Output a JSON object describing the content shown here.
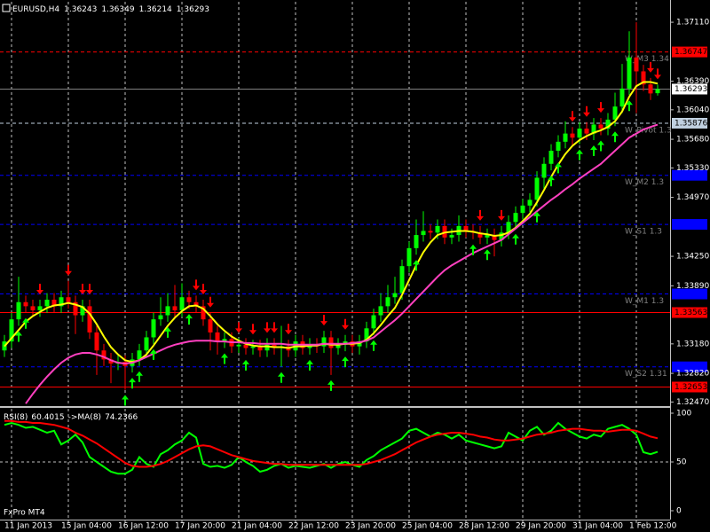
{
  "chart_data": [
    {
      "type": "candlestick",
      "title": "EURUSD,H4",
      "candles": [
        [
          1.331,
          1.3329,
          1.3302,
          1.3321
        ],
        [
          1.3321,
          1.3356,
          1.3313,
          1.3348
        ],
        [
          1.3348,
          1.34,
          1.334,
          1.3369
        ],
        [
          1.3369,
          1.3377,
          1.3356,
          1.3364
        ],
        [
          1.3364,
          1.3372,
          1.3351,
          1.3359
        ],
        [
          1.3359,
          1.3372,
          1.3351,
          1.3364
        ],
        [
          1.3364,
          1.338,
          1.3356,
          1.3372
        ],
        [
          1.3372,
          1.338,
          1.3356,
          1.3364
        ],
        [
          1.3364,
          1.3383,
          1.3356,
          1.3375
        ],
        [
          1.3375,
          1.3395,
          1.3361,
          1.3369
        ],
        [
          1.3369,
          1.3377,
          1.333,
          1.3353
        ],
        [
          1.3353,
          1.3372,
          1.3345,
          1.3364
        ],
        [
          1.3364,
          1.3372,
          1.3324,
          1.3332
        ],
        [
          1.3332,
          1.334,
          1.328,
          1.331
        ],
        [
          1.331,
          1.3318,
          1.3291,
          1.3299
        ],
        [
          1.3299,
          1.3307,
          1.327,
          1.3294
        ],
        [
          1.3294,
          1.3304,
          1.3286,
          1.3296
        ],
        [
          1.3296,
          1.3304,
          1.3262,
          1.3291
        ],
        [
          1.3291,
          1.3307,
          1.3283,
          1.3299
        ],
        [
          1.3299,
          1.3318,
          1.3291,
          1.331
        ],
        [
          1.331,
          1.3334,
          1.3302,
          1.3326
        ],
        [
          1.3326,
          1.3356,
          1.3318,
          1.3348
        ],
        [
          1.3348,
          1.3375,
          1.334,
          1.3353
        ],
        [
          1.3353,
          1.338,
          1.3345,
          1.3364
        ],
        [
          1.3364,
          1.339,
          1.3351,
          1.3359
        ],
        [
          1.3359,
          1.3392,
          1.3351,
          1.3375
        ],
        [
          1.3375,
          1.3383,
          1.3361,
          1.3369
        ],
        [
          1.3369,
          1.3377,
          1.3356,
          1.3364
        ],
        [
          1.3364,
          1.3372,
          1.334,
          1.3348
        ],
        [
          1.3348,
          1.3356,
          1.331,
          1.3332
        ],
        [
          1.3332,
          1.334,
          1.3305,
          1.3321
        ],
        [
          1.3321,
          1.3332,
          1.3313,
          1.3324
        ],
        [
          1.3324,
          1.3332,
          1.3307,
          1.3315
        ],
        [
          1.3315,
          1.3325,
          1.3307,
          1.3317
        ],
        [
          1.3317,
          1.3325,
          1.3305,
          1.3313
        ],
        [
          1.3313,
          1.3323,
          1.3305,
          1.3315
        ],
        [
          1.3315,
          1.3323,
          1.3302,
          1.331
        ],
        [
          1.331,
          1.3325,
          1.3302,
          1.3317
        ],
        [
          1.3317,
          1.3325,
          1.3305,
          1.3313
        ],
        [
          1.3313,
          1.334,
          1.329,
          1.3315
        ],
        [
          1.3315,
          1.3323,
          1.3302,
          1.331
        ],
        [
          1.331,
          1.3329,
          1.3302,
          1.3321
        ],
        [
          1.3321,
          1.3329,
          1.3305,
          1.3313
        ],
        [
          1.3313,
          1.3325,
          1.3305,
          1.3317
        ],
        [
          1.3317,
          1.3325,
          1.3307,
          1.3315
        ],
        [
          1.3315,
          1.3334,
          1.3307,
          1.3326
        ],
        [
          1.3326,
          1.3334,
          1.328,
          1.3313
        ],
        [
          1.3313,
          1.3325,
          1.3305,
          1.3317
        ],
        [
          1.3317,
          1.3329,
          1.3309,
          1.3321
        ],
        [
          1.3321,
          1.3329,
          1.3307,
          1.3315
        ],
        [
          1.3315,
          1.3329,
          1.3305,
          1.3321
        ],
        [
          1.3321,
          1.3345,
          1.3313,
          1.3337
        ],
        [
          1.3337,
          1.3361,
          1.3329,
          1.3353
        ],
        [
          1.3353,
          1.338,
          1.3345,
          1.3364
        ],
        [
          1.3364,
          1.339,
          1.3356,
          1.3375
        ],
        [
          1.3375,
          1.34,
          1.3367,
          1.338
        ],
        [
          1.338,
          1.3421,
          1.3372,
          1.3413
        ],
        [
          1.3413,
          1.3443,
          1.3405,
          1.3435
        ],
        [
          1.3435,
          1.347,
          1.3427,
          1.3451
        ],
        [
          1.3451,
          1.348,
          1.3443,
          1.3456
        ],
        [
          1.3456,
          1.3464,
          1.3446,
          1.3454
        ],
        [
          1.3454,
          1.347,
          1.3446,
          1.3462
        ],
        [
          1.3462,
          1.347,
          1.344,
          1.3448
        ],
        [
          1.3448,
          1.3459,
          1.344,
          1.3451
        ],
        [
          1.3451,
          1.3475,
          1.3443,
          1.3462
        ],
        [
          1.3462,
          1.347,
          1.3448,
          1.3456
        ],
        [
          1.3456,
          1.3464,
          1.3446,
          1.3454
        ],
        [
          1.3454,
          1.3462,
          1.344,
          1.3448
        ],
        [
          1.3448,
          1.3459,
          1.344,
          1.3451
        ],
        [
          1.3451,
          1.3459,
          1.3425,
          1.3445
        ],
        [
          1.3445,
          1.3462,
          1.3437,
          1.3454
        ],
        [
          1.3454,
          1.3475,
          1.3446,
          1.3467
        ],
        [
          1.3467,
          1.3486,
          1.3459,
          1.3478
        ],
        [
          1.3478,
          1.3495,
          1.347,
          1.3487
        ],
        [
          1.3487,
          1.3502,
          1.3479,
          1.3494
        ],
        [
          1.3494,
          1.3529,
          1.3486,
          1.3521
        ],
        [
          1.3521,
          1.3546,
          1.3505,
          1.3538
        ],
        [
          1.3538,
          1.3562,
          1.353,
          1.3554
        ],
        [
          1.3554,
          1.3573,
          1.3546,
          1.3565
        ],
        [
          1.3565,
          1.359,
          1.3557,
          1.3575
        ],
        [
          1.3575,
          1.3583,
          1.356,
          1.357
        ],
        [
          1.357,
          1.3589,
          1.3562,
          1.3581
        ],
        [
          1.3581,
          1.3589,
          1.3567,
          1.3575
        ],
        [
          1.3575,
          1.3594,
          1.3567,
          1.3586
        ],
        [
          1.3586,
          1.3594,
          1.3573,
          1.3581
        ],
        [
          1.3581,
          1.36,
          1.3573,
          1.3592
        ],
        [
          1.3592,
          1.3625,
          1.3584,
          1.3608
        ],
        [
          1.3608,
          1.366,
          1.36,
          1.363
        ],
        [
          1.363,
          1.37,
          1.3622,
          1.3668
        ],
        [
          1.3668,
          1.3711,
          1.36,
          1.3651
        ],
        [
          1.3651,
          1.3659,
          1.3627,
          1.3635
        ],
        [
          1.3635,
          1.3643,
          1.3616,
          1.3624
        ],
        [
          1.36243,
          1.36349,
          1.36214,
          1.36293
        ]
      ],
      "up_color": "#00ff00",
      "down_color": "#ff0000",
      "overlays": [
        {
          "color": "#ffff00",
          "values": [
            1.3315,
            1.3325,
            1.3335,
            1.3345,
            1.3352,
            1.3357,
            1.3362,
            1.3365,
            1.3366,
            1.3368,
            1.3366,
            1.3363,
            1.3355,
            1.3342,
            1.3327,
            1.3314,
            1.3305,
            1.3298,
            1.3296,
            1.3298,
            1.3305,
            1.3316,
            1.3328,
            1.334,
            1.335,
            1.3358,
            1.3364,
            1.3365,
            1.3361,
            1.3352,
            1.3342,
            1.3334,
            1.3327,
            1.3322,
            1.3318,
            1.3316,
            1.3315,
            1.3315,
            1.3314,
            1.3314,
            1.3313,
            1.3315,
            1.3315,
            1.3316,
            1.3316,
            1.3318,
            1.3317,
            1.3317,
            1.3318,
            1.3318,
            1.3319,
            1.3323,
            1.3331,
            1.3341,
            1.3352,
            1.3362,
            1.3378,
            1.3396,
            1.3414,
            1.343,
            1.3442,
            1.3451,
            1.3454,
            1.3455,
            1.3456,
            1.3456,
            1.3455,
            1.3453,
            1.3452,
            1.345,
            1.3451,
            1.3454,
            1.346,
            1.3468,
            1.3477,
            1.3491,
            1.3506,
            1.3522,
            1.3537,
            1.355,
            1.356,
            1.3567,
            1.3572,
            1.3576,
            1.3579,
            1.3583,
            1.359,
            1.3602,
            1.362,
            1.3633,
            1.3638,
            1.3638,
            1.3636
          ]
        },
        {
          "color": "#ff40c0",
          "values": [
            null,
            null,
            null,
            1.3245,
            1.3257,
            1.3268,
            1.3278,
            1.3287,
            1.3295,
            1.3301,
            1.3305,
            1.3307,
            1.3307,
            1.3305,
            1.3302,
            1.3298,
            1.3295,
            1.3294,
            1.3295,
            1.3298,
            1.3302,
            1.3306,
            1.331,
            1.3314,
            1.3317,
            1.3319,
            1.3321,
            1.3322,
            1.3322,
            1.3322,
            1.3321,
            1.3321,
            1.332,
            1.332,
            1.3319,
            1.3319,
            1.3318,
            1.3318,
            1.3318,
            1.3318,
            1.3317,
            1.3317,
            1.3317,
            1.3317,
            1.3317,
            1.3318,
            1.3318,
            1.3318,
            1.3318,
            1.3319,
            1.332,
            1.3322,
            1.3326,
            1.3333,
            1.334,
            1.3347,
            1.3355,
            1.3364,
            1.3373,
            1.3382,
            1.3391,
            1.34,
            1.3408,
            1.3414,
            1.3419,
            1.3424,
            1.3429,
            1.3433,
            1.3437,
            1.3441,
            1.3445,
            1.3452,
            1.3459,
            1.3466,
            1.3473,
            1.348,
            1.3487,
            1.3494,
            1.35,
            1.3507,
            1.3513,
            1.352,
            1.3526,
            1.3532,
            1.3538,
            1.3546,
            1.3554,
            1.3562,
            1.357,
            1.3575,
            1.358,
            1.3583,
            1.3586
          ]
        }
      ],
      "levels": [
        {
          "name": "W_M3 1.34",
          "value": 1.36747,
          "label": "1.36747",
          "color": "#ff0000",
          "style": "dashed"
        },
        {
          "name": "W_Pivot 1.3",
          "value": 1.35876,
          "label": "1.35876",
          "color": "#c0d0e0",
          "style": "dashed"
        },
        {
          "name": "W_M2 1.3",
          "value": 1.3524,
          "color": "#0000ff",
          "style": "dashed"
        },
        {
          "name": "W_S1 1.3",
          "value": 1.3464,
          "color": "#0000ff",
          "style": "dashed"
        },
        {
          "name": "W_M1 1.3",
          "value": 1.3379,
          "color": "#0000ff",
          "style": "dashed"
        },
        {
          "value": 1.33563,
          "label": "1.33563",
          "color": "#ff0000",
          "style": "solid"
        },
        {
          "name": "W_S2 1.31",
          "value": 1.329,
          "color": "#0000ff",
          "style": "dashed"
        },
        {
          "value": 1.32653,
          "label": "1.32653",
          "color": "#ff0000",
          "style": "solid"
        }
      ],
      "signals": {
        "sell": [
          5,
          9,
          11,
          12,
          27,
          28,
          29,
          33,
          35,
          37,
          38,
          40,
          45,
          48,
          67,
          70,
          80,
          82,
          84,
          91,
          92
        ],
        "buy": [
          2,
          3,
          17,
          18,
          19,
          21,
          23,
          26,
          31,
          34,
          39,
          43,
          46,
          48,
          52,
          58,
          66,
          68,
          72,
          75,
          77,
          78,
          81,
          83,
          84,
          86,
          88
        ]
      },
      "ylim": [
        1.3242,
        1.3736
      ],
      "yticks": [
        {
          "value": 1.3711,
          "label": "1.37110"
        },
        {
          "value": 1.3639,
          "label": "1.36390"
        },
        {
          "value": 1.3604,
          "label": "1.36040"
        },
        {
          "value": 1.3568,
          "label": "1.35680"
        },
        {
          "value": 1.3533,
          "label": "1.35330"
        },
        {
          "value": 1.3497,
          "label": "1.34970"
        },
        {
          "value": 1.3425,
          "label": "1.34250"
        },
        {
          "value": 1.3389,
          "label": "1.33890"
        },
        {
          "value": 1.3318,
          "label": "1.33180"
        },
        {
          "value": 1.3282,
          "label": "1.32820"
        },
        {
          "value": 1.3247,
          "label": "1.32470"
        }
      ],
      "xlim": [
        -0.625,
        93.75
      ],
      "xticks": [
        {
          "value": 1,
          "label": "11 Jan 2013"
        },
        {
          "value": 9,
          "label": "15 Jan 04:00"
        },
        {
          "value": 17,
          "label": "16 Jan 12:00"
        },
        {
          "value": 25,
          "label": "17 Jan 20:00"
        },
        {
          "value": 33,
          "label": "21 Jan 04:00"
        },
        {
          "value": 41,
          "label": "22 Jan 12:00"
        },
        {
          "value": 49,
          "label": "23 Jan 20:00"
        },
        {
          "value": 57,
          "label": "25 Jan 04:00"
        },
        {
          "value": 65,
          "label": "28 Jan 12:00"
        },
        {
          "value": 73,
          "label": "29 Jan 20:00"
        },
        {
          "value": 81,
          "label": "31 Jan 04:00"
        },
        {
          "value": 89,
          "label": "1 Feb 12:00"
        }
      ]
    },
    {
      "type": "line",
      "title": "RSI(8)",
      "ma_title": "->MA(8)",
      "series": [
        {
          "color": "#00ff00",
          "values": [
            88,
            90,
            88,
            85,
            86,
            83,
            80,
            82,
            68,
            72,
            78,
            70,
            55,
            50,
            45,
            40,
            38,
            38,
            42,
            55,
            48,
            45,
            58,
            62,
            68,
            72,
            80,
            75,
            48,
            45,
            46,
            44,
            47,
            55,
            50,
            46,
            40,
            42,
            46,
            48,
            44,
            46,
            45,
            44,
            46,
            48,
            44,
            48,
            50,
            47,
            45,
            52,
            56,
            62,
            66,
            70,
            74,
            82,
            84,
            80,
            76,
            80,
            78,
            74,
            78,
            72,
            70,
            68,
            66,
            64,
            66,
            80,
            76,
            72,
            82,
            86,
            78,
            82,
            90,
            84,
            80,
            76,
            74,
            78,
            76,
            84,
            86,
            88,
            84,
            78,
            60,
            58,
            60.4015
          ]
        },
        {
          "color": "#ff0000",
          "values": [
            92,
            92,
            91,
            91,
            90,
            90,
            89,
            88,
            86,
            84,
            80,
            77,
            73,
            69,
            64,
            59,
            54,
            49,
            46,
            45,
            45,
            46,
            48,
            51,
            55,
            59,
            63,
            66,
            67,
            66,
            63,
            60,
            57,
            55,
            53,
            51,
            50,
            49,
            48,
            48,
            47,
            47,
            47,
            47,
            47,
            47,
            47,
            47,
            47,
            47,
            47,
            48,
            50,
            52,
            55,
            58,
            62,
            66,
            70,
            73,
            76,
            78,
            79,
            80,
            80,
            79,
            78,
            76,
            75,
            73,
            72,
            72,
            73,
            74,
            76,
            78,
            79,
            80,
            82,
            83,
            84,
            84,
            83,
            82,
            82,
            81,
            82,
            83,
            83,
            82,
            79,
            76,
            74.2366
          ]
        }
      ],
      "ylim": [
        0,
        100
      ],
      "yticks": [
        0,
        50,
        100
      ]
    }
  ],
  "branding": "FxPro MT4"
}
